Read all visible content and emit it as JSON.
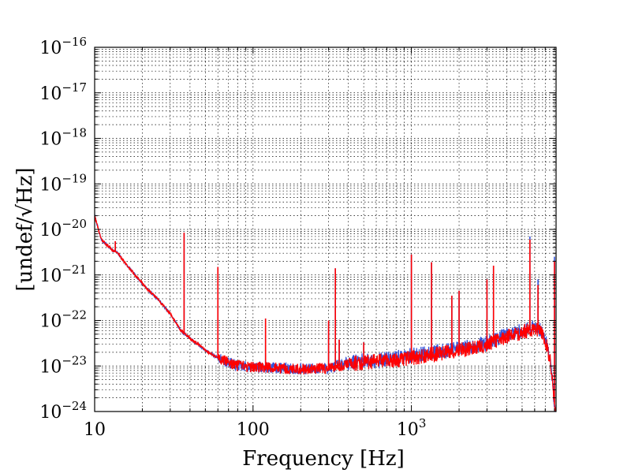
{
  "chart_data": {
    "type": "line",
    "title": "",
    "xlabel": "Frequency [Hz]",
    "ylabel": "[undef/√Hz]",
    "xscale": "log",
    "yscale": "log",
    "xlim": [
      10,
      8192
    ],
    "ylim": [
      1e-24,
      1e-16
    ],
    "grid": true,
    "x_ticks": [
      {
        "value": 10,
        "label": "10"
      },
      {
        "value": 100,
        "label": "100"
      },
      {
        "value": 1000,
        "label": "10",
        "exp": "3"
      }
    ],
    "y_ticks": [
      {
        "value": 1e-16,
        "label": "10",
        "exp": "−16"
      },
      {
        "value": 1e-17,
        "label": "10",
        "exp": "−17"
      },
      {
        "value": 1e-18,
        "label": "10",
        "exp": "−18"
      },
      {
        "value": 1e-19,
        "label": "10",
        "exp": "−19"
      },
      {
        "value": 1e-20,
        "label": "10",
        "exp": "−20"
      },
      {
        "value": 1e-21,
        "label": "10",
        "exp": "−21"
      },
      {
        "value": 1e-22,
        "label": "10",
        "exp": "−22"
      },
      {
        "value": 1e-23,
        "label": "10",
        "exp": "−23"
      },
      {
        "value": 1e-24,
        "label": "10",
        "exp": "−24"
      }
    ],
    "series": [
      {
        "color": "#3355dd",
        "noise_decades": 0.12,
        "baseline": [
          [
            10,
            2e-20
          ],
          [
            11,
            6e-21
          ],
          [
            12,
            4.5e-21
          ],
          [
            13,
            3.5e-21
          ],
          [
            14,
            3e-21
          ],
          [
            15,
            2.2e-21
          ],
          [
            16,
            1.6e-21
          ],
          [
            18,
            1e-21
          ],
          [
            20,
            6.5e-22
          ],
          [
            22,
            4.5e-22
          ],
          [
            25,
            3e-22
          ],
          [
            30,
            1.4e-22
          ],
          [
            35,
            6e-23
          ],
          [
            40,
            4e-23
          ],
          [
            45,
            3e-23
          ],
          [
            50,
            2.2e-23
          ],
          [
            60,
            1.5e-23
          ],
          [
            70,
            1.2e-23
          ],
          [
            80,
            1e-23
          ],
          [
            100,
            9.5e-24
          ],
          [
            150,
            9e-24
          ],
          [
            200,
            8.5e-24
          ],
          [
            300,
            9e-24
          ],
          [
            400,
            1.2e-23
          ],
          [
            500,
            1.3e-23
          ],
          [
            700,
            1.4e-23
          ],
          [
            1000,
            1.7e-23
          ],
          [
            1500,
            2.1e-23
          ],
          [
            2000,
            2.4e-23
          ],
          [
            3000,
            3.2e-23
          ],
          [
            4000,
            4.8e-23
          ],
          [
            5000,
            6e-23
          ],
          [
            6000,
            7e-23
          ],
          [
            6500,
            6.5e-23
          ],
          [
            7000,
            4e-23
          ],
          [
            7500,
            1.5e-23
          ],
          [
            7800,
            4e-24
          ],
          [
            8100,
            1e-24
          ]
        ],
        "peaks": [
          [
            13.5,
            5.5e-21
          ],
          [
            36.7,
            8.5e-21
          ],
          [
            60,
            1.5e-21
          ],
          [
            120,
            1.1e-22
          ],
          [
            300,
            1e-22
          ],
          [
            331,
            1.4e-21
          ],
          [
            350,
            3.8e-23
          ],
          [
            500,
            3.3e-23
          ],
          [
            1000,
            2.8e-21
          ],
          [
            1340,
            1.9e-21
          ],
          [
            1800,
            3.5e-22
          ],
          [
            2000,
            4.5e-22
          ],
          [
            3000,
            8e-22
          ],
          [
            3300,
            1.6e-21
          ],
          [
            5600,
            7e-21
          ],
          [
            6300,
            8e-22
          ],
          [
            8000,
            2.5e-21
          ]
        ]
      },
      {
        "color": "#ff0000",
        "noise_decades": 0.12,
        "baseline": [
          [
            10,
            2e-20
          ],
          [
            11,
            6e-21
          ],
          [
            12,
            4.5e-21
          ],
          [
            13,
            3.5e-21
          ],
          [
            14,
            3e-21
          ],
          [
            15,
            2.2e-21
          ],
          [
            16,
            1.6e-21
          ],
          [
            18,
            1e-21
          ],
          [
            20,
            6.5e-22
          ],
          [
            22,
            4.5e-22
          ],
          [
            25,
            3e-22
          ],
          [
            30,
            1.4e-22
          ],
          [
            35,
            6e-23
          ],
          [
            40,
            4e-23
          ],
          [
            45,
            3e-23
          ],
          [
            50,
            2.2e-23
          ],
          [
            60,
            1.5e-23
          ],
          [
            70,
            1.2e-23
          ],
          [
            80,
            1e-23
          ],
          [
            100,
            9.5e-24
          ],
          [
            150,
            9e-24
          ],
          [
            200,
            8.5e-24
          ],
          [
            300,
            9e-24
          ],
          [
            400,
            1.1e-23
          ],
          [
            500,
            1.2e-23
          ],
          [
            700,
            1.3e-23
          ],
          [
            1000,
            1.5e-23
          ],
          [
            1500,
            1.9e-23
          ],
          [
            2000,
            2.2e-23
          ],
          [
            3000,
            3e-23
          ],
          [
            4000,
            4.5e-23
          ],
          [
            5000,
            5.5e-23
          ],
          [
            6000,
            6.5e-23
          ],
          [
            6500,
            6e-23
          ],
          [
            7000,
            3.8e-23
          ],
          [
            7500,
            1.4e-23
          ],
          [
            7800,
            4e-24
          ],
          [
            8100,
            1e-24
          ]
        ],
        "peaks": [
          [
            13.5,
            5.5e-21
          ],
          [
            36.7,
            8.5e-21
          ],
          [
            60,
            1.5e-21
          ],
          [
            120,
            1.1e-22
          ],
          [
            300,
            1e-22
          ],
          [
            331,
            1.4e-21
          ],
          [
            350,
            3.8e-23
          ],
          [
            500,
            3.3e-23
          ],
          [
            1000,
            2.8e-21
          ],
          [
            1340,
            1.9e-21
          ],
          [
            1800,
            3.5e-22
          ],
          [
            2000,
            4.5e-22
          ],
          [
            3000,
            8e-22
          ],
          [
            3300,
            1.6e-21
          ],
          [
            5600,
            6e-21
          ],
          [
            6300,
            6e-22
          ],
          [
            8000,
            2e-21
          ]
        ]
      }
    ]
  }
}
